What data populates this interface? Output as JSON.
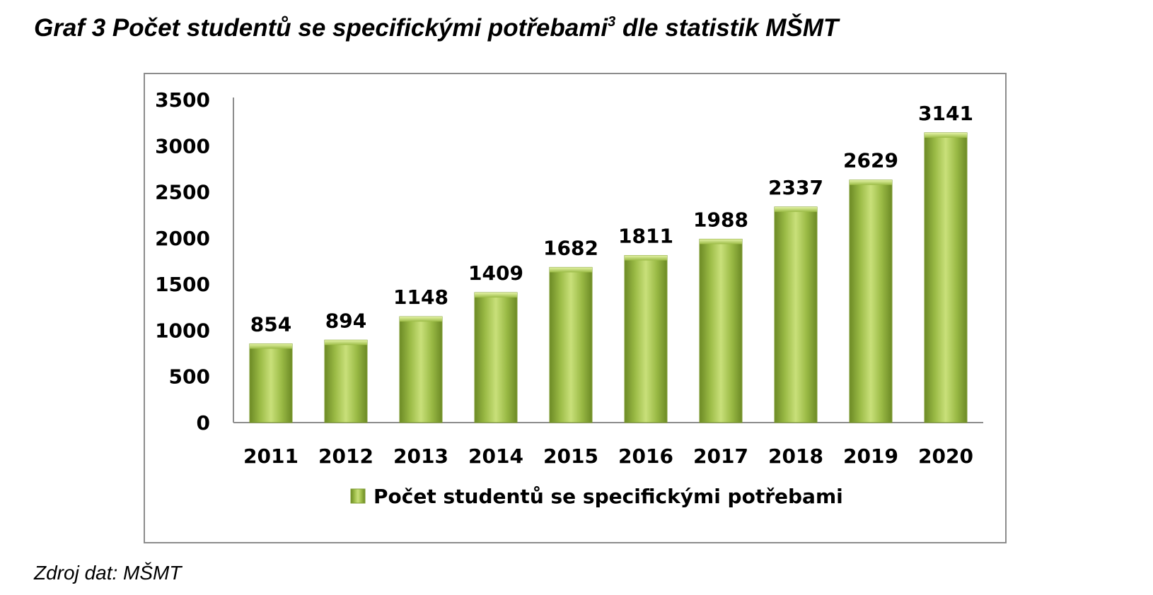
{
  "title": {
    "main": "Graf 3 Počet studentů se specifickými potřebami",
    "footnote_mark": "3",
    "suffix": " dle statistik MŠMT"
  },
  "source": "Zdroj dat: MŠMT",
  "colors": {
    "bar_light": "#c9e07a",
    "bar_mid": "#9bbb46",
    "bar_dark": "#6c8a25",
    "frame": "#8c8c8c",
    "axis": "#8c8c8c"
  },
  "chart_data": {
    "type": "bar",
    "categories": [
      "2011",
      "2012",
      "2013",
      "2014",
      "2015",
      "2016",
      "2017",
      "2018",
      "2019",
      "2020"
    ],
    "series": [
      {
        "name": "Počet studentů se specifickými potřebami",
        "values": [
          854,
          894,
          1148,
          1409,
          1682,
          1811,
          1988,
          2337,
          2629,
          3141
        ]
      }
    ],
    "yticks": [
      "0",
      "500",
      "1000",
      "1500",
      "2000",
      "2500",
      "3000",
      "3500"
    ],
    "ylim": [
      0,
      3500
    ],
    "data_labels": true,
    "legend_position": "bottom",
    "grid": false
  }
}
